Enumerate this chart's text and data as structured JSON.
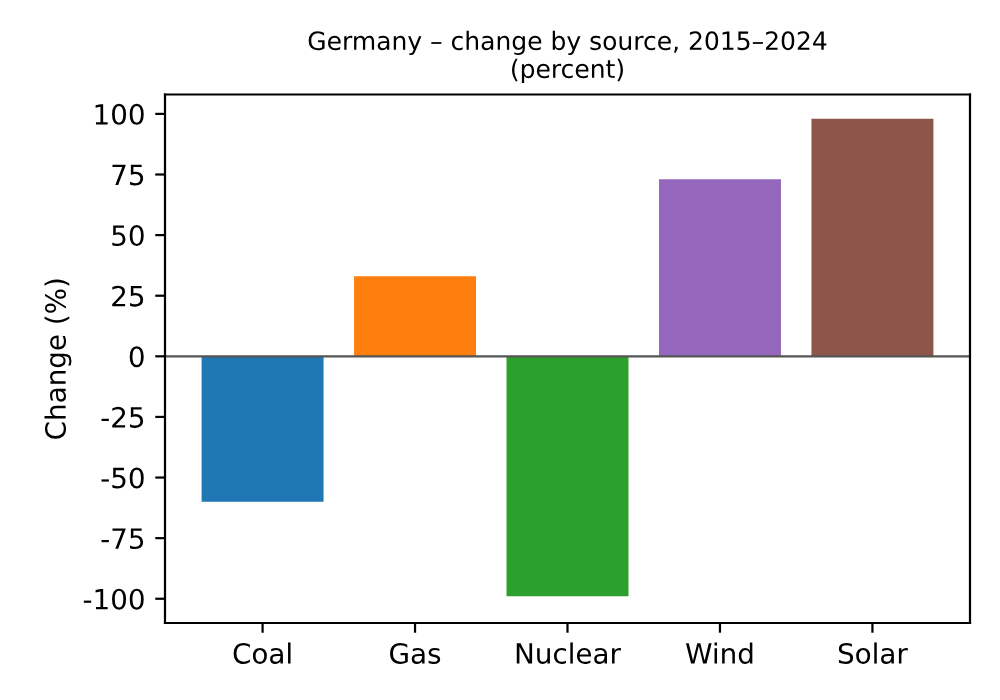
{
  "chart_data": {
    "type": "bar",
    "title": "Germany – change by source, 2015–2024\n(percent)",
    "ylabel": "Change (%)",
    "categories": [
      "Coal",
      "Gas",
      "Nuclear",
      "Wind",
      "Solar"
    ],
    "values": [
      -60,
      33,
      -99,
      73,
      98
    ],
    "colors": [
      "#1f77b4",
      "#ff7f0e",
      "#2ca02c",
      "#9467bd",
      "#8c564b"
    ],
    "ylim": [
      -110,
      108
    ],
    "yticks": [
      -100,
      -75,
      -50,
      -25,
      0,
      25,
      50,
      75,
      100
    ],
    "ref_lines": [
      {
        "axis": "y",
        "value": 0,
        "color": "#555555"
      }
    ],
    "grid": false,
    "legend": false
  }
}
